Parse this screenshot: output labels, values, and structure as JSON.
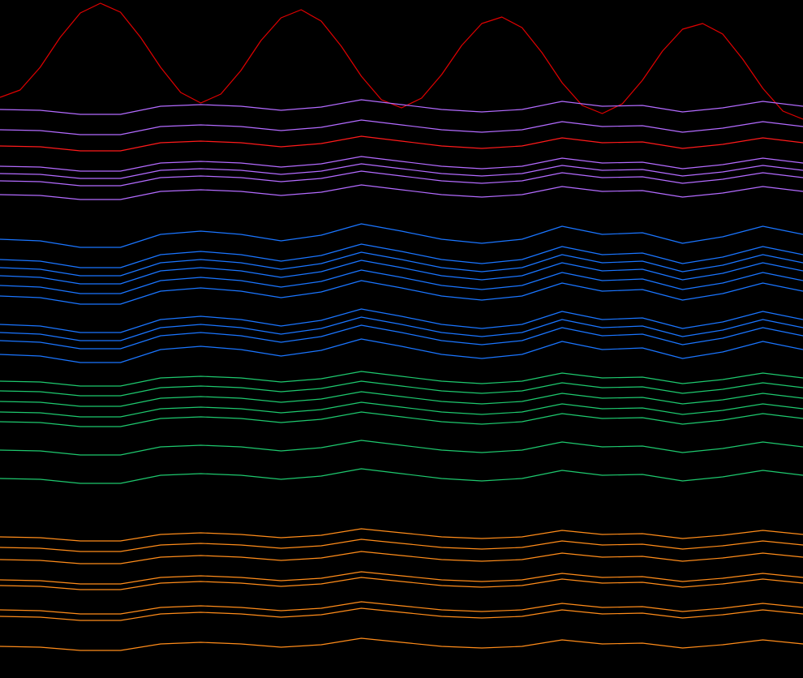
{
  "chart_data": [
    {
      "type": "line",
      "ylim": [
        0,
        836
      ],
      "series": [
        {
          "color": "#e00000",
          "values": [
            716,
            725,
            753,
            790,
            820,
            832,
            821,
            790,
            753,
            722,
            709,
            720,
            749,
            786,
            814,
            824,
            810,
            779,
            742,
            713,
            703,
            715,
            744,
            780,
            807,
            815,
            802,
            771,
            734,
            706,
            696,
            708,
            737,
            773,
            800,
            807,
            794,
            763,
            727,
            699,
            689
          ]
        }
      ]
    },
    {
      "type": "line",
      "ylim": [
        0,
        836
      ],
      "series": [
        {
          "color": "#b36bff",
          "values": [
            701,
            700,
            695,
            695,
            705,
            707,
            705,
            700,
            704,
            713,
            707,
            701,
            698,
            701,
            711,
            705,
            706,
            698,
            703,
            711,
            705
          ]
        },
        {
          "color": "#b36bff",
          "values": [
            676,
            675,
            670,
            670,
            680,
            682,
            680,
            675,
            679,
            688,
            682,
            676,
            673,
            676,
            686,
            680,
            681,
            673,
            678,
            686,
            680
          ]
        },
        {
          "color": "#ff1a1a",
          "values": [
            656,
            655,
            650,
            650,
            660,
            662,
            660,
            655,
            659,
            668,
            662,
            656,
            653,
            656,
            666,
            660,
            661,
            653,
            658,
            666,
            660
          ]
        },
        {
          "color": "#b36bff",
          "values": [
            631,
            630,
            625,
            625,
            635,
            637,
            635,
            630,
            634,
            643,
            637,
            631,
            628,
            631,
            641,
            635,
            636,
            628,
            633,
            641,
            635
          ]
        },
        {
          "color": "#b36bff",
          "values": [
            622,
            621,
            616,
            616,
            626,
            628,
            626,
            621,
            625,
            634,
            628,
            622,
            619,
            622,
            632,
            626,
            627,
            619,
            624,
            632,
            626
          ]
        },
        {
          "color": "#b36bff",
          "values": [
            613,
            612,
            607,
            607,
            617,
            619,
            617,
            612,
            616,
            625,
            619,
            613,
            610,
            613,
            623,
            617,
            618,
            610,
            615,
            623,
            617
          ]
        },
        {
          "color": "#b36bff",
          "values": [
            596,
            595,
            590,
            590,
            600,
            602,
            600,
            595,
            599,
            608,
            602,
            596,
            593,
            596,
            606,
            600,
            601,
            593,
            598,
            606,
            600
          ]
        },
        {
          "color": "#1a75ff",
          "values": [
            541,
            539,
            531,
            531,
            547,
            551,
            547,
            539,
            546,
            560,
            551,
            541,
            536,
            541,
            557,
            547,
            549,
            536,
            544,
            557,
            547
          ]
        },
        {
          "color": "#1a75ff",
          "values": [
            516,
            514,
            506,
            506,
            522,
            526,
            522,
            514,
            521,
            535,
            526,
            516,
            511,
            516,
            532,
            522,
            524,
            511,
            519,
            532,
            522
          ]
        },
        {
          "color": "#1a75ff",
          "values": [
            506,
            504,
            496,
            496,
            512,
            516,
            512,
            504,
            511,
            525,
            516,
            506,
            501,
            506,
            522,
            512,
            514,
            501,
            509,
            522,
            512
          ]
        },
        {
          "color": "#1a75ff",
          "values": [
            496,
            494,
            486,
            486,
            502,
            506,
            502,
            494,
            501,
            515,
            506,
            496,
            491,
            496,
            512,
            502,
            504,
            491,
            499,
            512,
            502
          ]
        },
        {
          "color": "#1a75ff",
          "values": [
            484,
            482,
            474,
            474,
            490,
            494,
            490,
            482,
            489,
            503,
            494,
            484,
            479,
            484,
            500,
            490,
            492,
            479,
            487,
            500,
            490
          ]
        },
        {
          "color": "#1a75ff",
          "values": [
            471,
            469,
            461,
            461,
            477,
            481,
            477,
            469,
            476,
            490,
            481,
            471,
            466,
            471,
            487,
            477,
            479,
            466,
            474,
            487,
            477
          ]
        },
        {
          "color": "#1a75ff",
          "values": [
            436,
            434,
            426,
            426,
            442,
            446,
            442,
            434,
            441,
            455,
            446,
            436,
            431,
            436,
            452,
            442,
            444,
            431,
            439,
            452,
            442
          ]
        },
        {
          "color": "#1a75ff",
          "values": [
            426,
            424,
            416,
            416,
            432,
            436,
            432,
            424,
            431,
            445,
            436,
            426,
            421,
            426,
            442,
            432,
            434,
            421,
            429,
            442,
            432
          ]
        },
        {
          "color": "#1a75ff",
          "values": [
            416,
            414,
            406,
            406,
            422,
            426,
            422,
            414,
            421,
            435,
            426,
            416,
            411,
            416,
            432,
            422,
            424,
            411,
            419,
            432,
            422
          ]
        },
        {
          "color": "#1a75ff",
          "values": [
            399,
            397,
            389,
            389,
            405,
            409,
            405,
            397,
            404,
            418,
            409,
            399,
            394,
            399,
            415,
            405,
            407,
            394,
            402,
            415,
            405
          ]
        },
        {
          "color": "#1ec86e",
          "values": [
            366,
            365,
            360,
            360,
            370,
            372,
            370,
            365,
            369,
            378,
            372,
            366,
            363,
            366,
            376,
            370,
            371,
            363,
            368,
            376,
            370
          ]
        },
        {
          "color": "#1ec86e",
          "values": [
            354,
            353,
            348,
            348,
            358,
            360,
            358,
            353,
            357,
            366,
            360,
            354,
            351,
            354,
            364,
            358,
            359,
            351,
            356,
            364,
            358
          ]
        },
        {
          "color": "#1ec86e",
          "values": [
            341,
            340,
            335,
            335,
            345,
            347,
            345,
            340,
            344,
            353,
            347,
            341,
            338,
            341,
            351,
            345,
            346,
            338,
            343,
            351,
            345
          ]
        },
        {
          "color": "#1ec86e",
          "values": [
            328,
            327,
            322,
            322,
            332,
            334,
            332,
            327,
            331,
            340,
            334,
            328,
            325,
            328,
            338,
            332,
            333,
            325,
            330,
            338,
            332
          ]
        },
        {
          "color": "#1ec86e",
          "values": [
            316,
            315,
            310,
            310,
            320,
            322,
            320,
            315,
            319,
            328,
            322,
            316,
            313,
            316,
            326,
            320,
            321,
            313,
            318,
            326,
            320
          ]
        },
        {
          "color": "#1ec86e",
          "values": [
            281,
            280,
            275,
            275,
            285,
            287,
            285,
            280,
            284,
            293,
            287,
            281,
            278,
            281,
            291,
            285,
            286,
            278,
            283,
            291,
            285
          ]
        },
        {
          "color": "#1ec86e",
          "values": [
            246,
            245,
            240,
            240,
            250,
            252,
            250,
            245,
            249,
            258,
            252,
            246,
            243,
            246,
            256,
            250,
            251,
            243,
            248,
            256,
            250
          ]
        },
        {
          "color": "#ff8c1a",
          "values": [
            174,
            173,
            169,
            169,
            177,
            179,
            177,
            173,
            176,
            184,
            179,
            174,
            172,
            174,
            182,
            177,
            178,
            172,
            176,
            182,
            177
          ]
        },
        {
          "color": "#ff8c1a",
          "values": [
            161,
            160,
            156,
            156,
            164,
            166,
            164,
            160,
            163,
            171,
            166,
            161,
            159,
            161,
            169,
            164,
            165,
            159,
            163,
            169,
            164
          ]
        },
        {
          "color": "#ff8c1a",
          "values": [
            146,
            145,
            141,
            141,
            149,
            151,
            149,
            145,
            148,
            156,
            151,
            146,
            144,
            146,
            154,
            149,
            150,
            144,
            148,
            154,
            149
          ]
        },
        {
          "color": "#ff8c1a",
          "values": [
            121,
            120,
            116,
            116,
            124,
            126,
            124,
            120,
            123,
            131,
            126,
            121,
            119,
            121,
            129,
            124,
            125,
            119,
            123,
            129,
            124
          ]
        },
        {
          "color": "#ff8c1a",
          "values": [
            114,
            113,
            109,
            109,
            117,
            119,
            117,
            113,
            116,
            124,
            119,
            114,
            112,
            114,
            122,
            117,
            118,
            112,
            116,
            122,
            117
          ]
        },
        {
          "color": "#ff8c1a",
          "values": [
            84,
            83,
            79,
            79,
            87,
            89,
            87,
            83,
            86,
            94,
            89,
            84,
            82,
            84,
            92,
            87,
            88,
            82,
            86,
            92,
            87
          ]
        },
        {
          "color": "#ff8c1a",
          "values": [
            76,
            75,
            71,
            71,
            79,
            81,
            79,
            75,
            78,
            86,
            81,
            76,
            74,
            76,
            84,
            79,
            80,
            74,
            78,
            84,
            79
          ]
        },
        {
          "color": "#ff8c1a",
          "values": [
            39,
            38,
            34,
            34,
            42,
            44,
            42,
            38,
            41,
            49,
            44,
            39,
            37,
            39,
            47,
            42,
            43,
            37,
            41,
            47,
            42
          ]
        }
      ]
    }
  ]
}
